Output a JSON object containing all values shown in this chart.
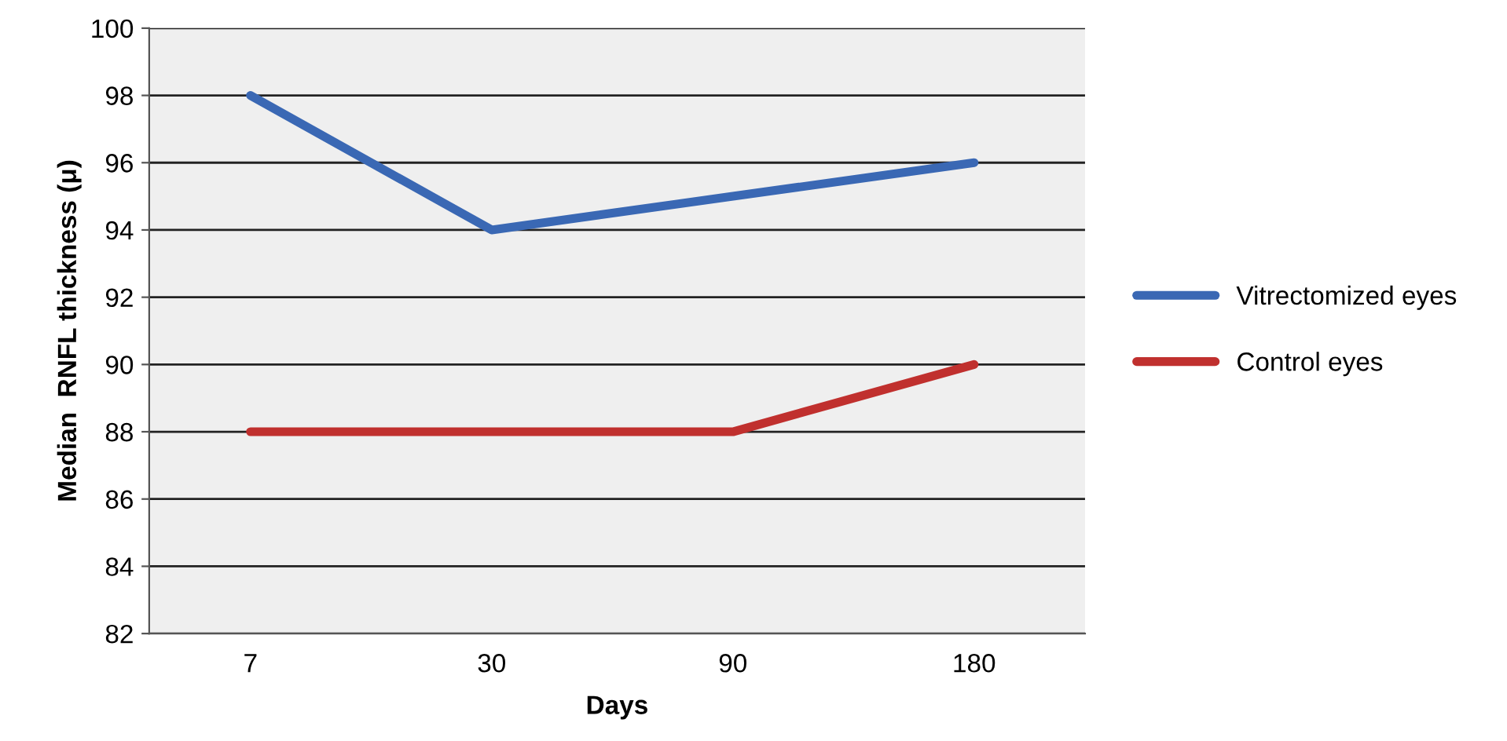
{
  "chart_data": {
    "type": "line",
    "xlabel": "Days",
    "ylabel": "Median  RNFL thickness (μ)",
    "categories": [
      "7",
      "30",
      "90",
      "180"
    ],
    "series": [
      {
        "name": "Vitrectomized eyes",
        "color": "#3a68b4",
        "values": [
          98,
          94,
          95,
          96
        ]
      },
      {
        "name": "Control eyes",
        "color": "#c0302e",
        "values": [
          88,
          88,
          88,
          90
        ]
      }
    ],
    "ylim": [
      82,
      100
    ],
    "yticks": [
      82,
      84,
      86,
      88,
      90,
      92,
      94,
      96,
      98,
      100
    ],
    "grid": "y",
    "legend": "right",
    "marker": "none",
    "line_style": "solid"
  }
}
